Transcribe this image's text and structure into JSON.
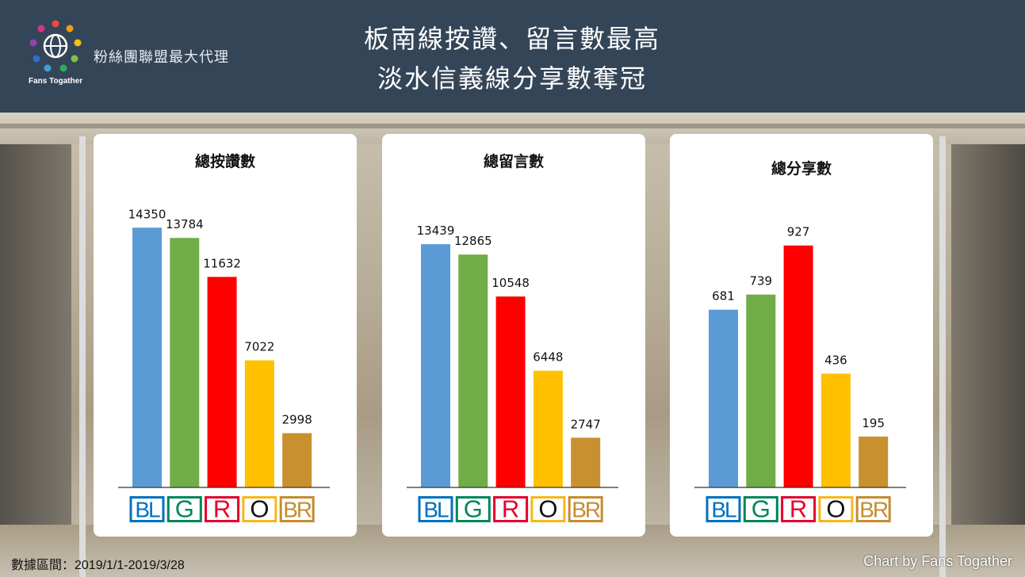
{
  "header": {
    "logo_text": "Fans Togather",
    "org_name": "粉絲團聯盟最大代理",
    "title_line1": "板南線按讚、留言數最高",
    "title_line2": "淡水信義線分享數奪冠"
  },
  "lines": [
    {
      "code": "BL",
      "color": "#5b9bd5",
      "badge_bg": "#0070c0",
      "text_color": "#ffffff"
    },
    {
      "code": "G",
      "color": "#70ad47",
      "badge_bg": "#008659",
      "text_color": "#ffffff"
    },
    {
      "code": "R",
      "color": "#ff0000",
      "badge_bg": "#e3002c",
      "text_color": "#ffffff"
    },
    {
      "code": "O",
      "color": "#ffc000",
      "badge_bg": "#f8b61c",
      "text_color": "#111111"
    },
    {
      "code": "BR",
      "color": "#c8902f",
      "badge_bg": "#c48c31",
      "text_color": "#ffffff"
    }
  ],
  "chart_data": [
    {
      "type": "bar",
      "title": "總按讚數",
      "categories": [
        "BL",
        "G",
        "R",
        "O",
        "BR"
      ],
      "values": [
        14350,
        13784,
        11632,
        7022,
        2998
      ],
      "ylim": [
        0,
        15500
      ]
    },
    {
      "type": "bar",
      "title": "總留言數",
      "categories": [
        "BL",
        "G",
        "R",
        "O",
        "BR"
      ],
      "values": [
        13439,
        12865,
        10548,
        6448,
        2747
      ],
      "ylim": [
        0,
        15500
      ]
    },
    {
      "type": "bar",
      "title": "總分享數",
      "categories": [
        "BL",
        "G",
        "R",
        "O",
        "BR"
      ],
      "values": [
        681,
        739,
        927,
        436,
        195
      ],
      "ylim": [
        0,
        1075
      ]
    }
  ],
  "footer": {
    "date_range": "數據區間：2019/1/1-2019/3/28",
    "credit": "Chart by Fans Togather"
  }
}
